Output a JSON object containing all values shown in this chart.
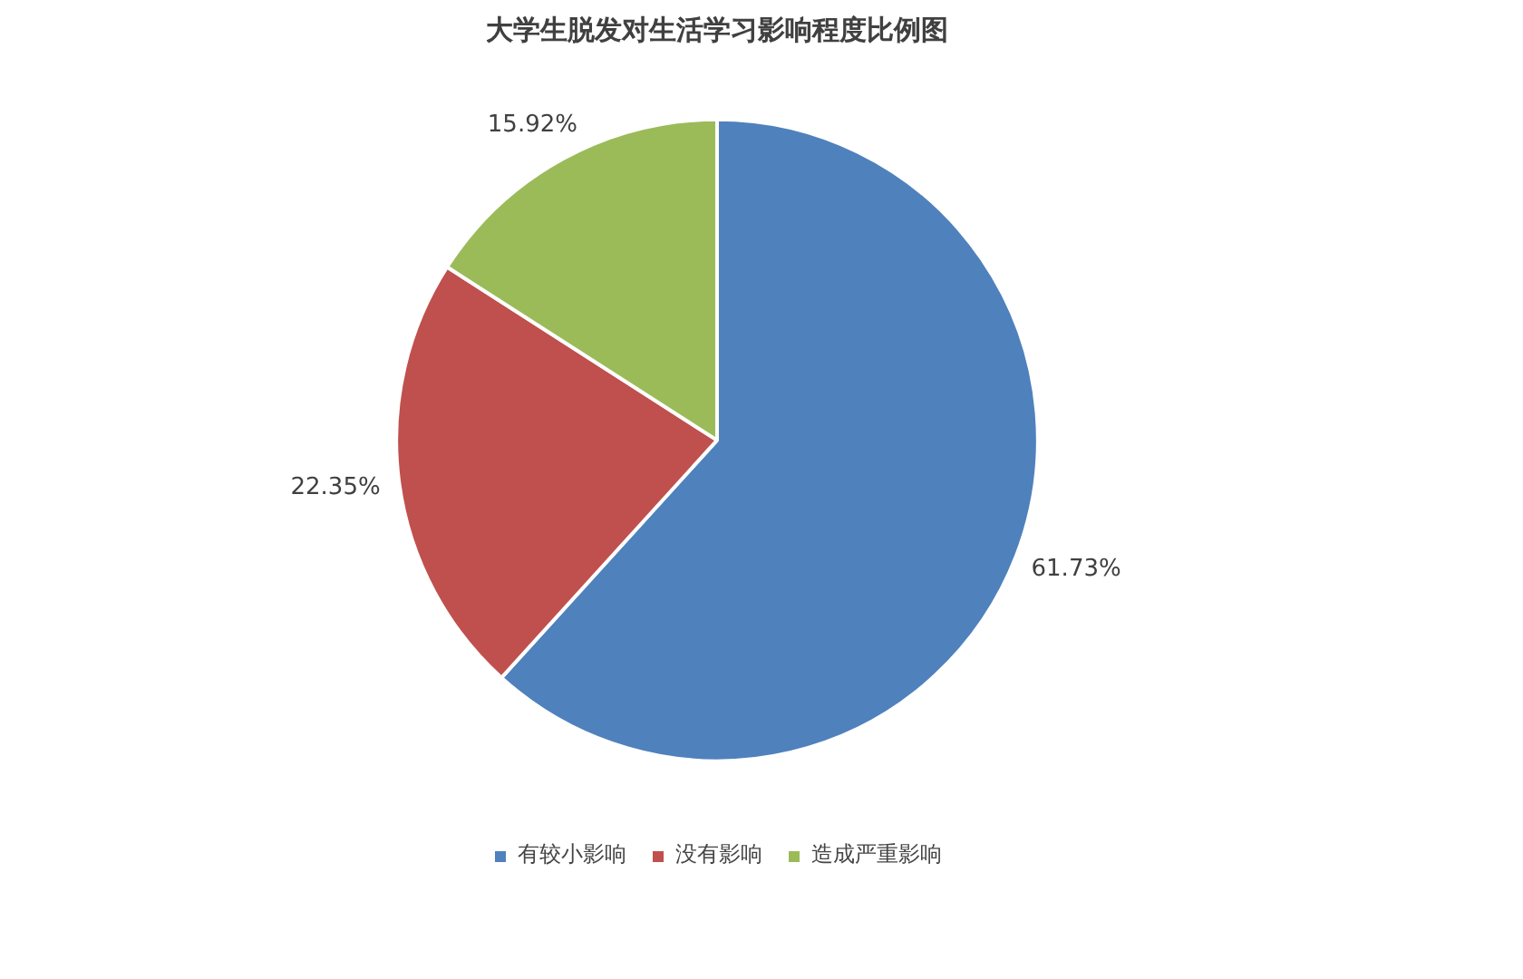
{
  "chart_data": {
    "type": "pie",
    "title": "大学生脱发对生活学习影响程度比例图",
    "categories": [
      "有较小影响",
      "没有影响",
      "造成严重影响"
    ],
    "values": [
      61.73,
      22.35,
      15.92
    ],
    "colors": [
      "#4f81bd",
      "#c0504d",
      "#9bbb59"
    ],
    "value_labels": [
      "61.73%",
      "22.35%",
      "15.92%"
    ],
    "legend": "bottom"
  }
}
